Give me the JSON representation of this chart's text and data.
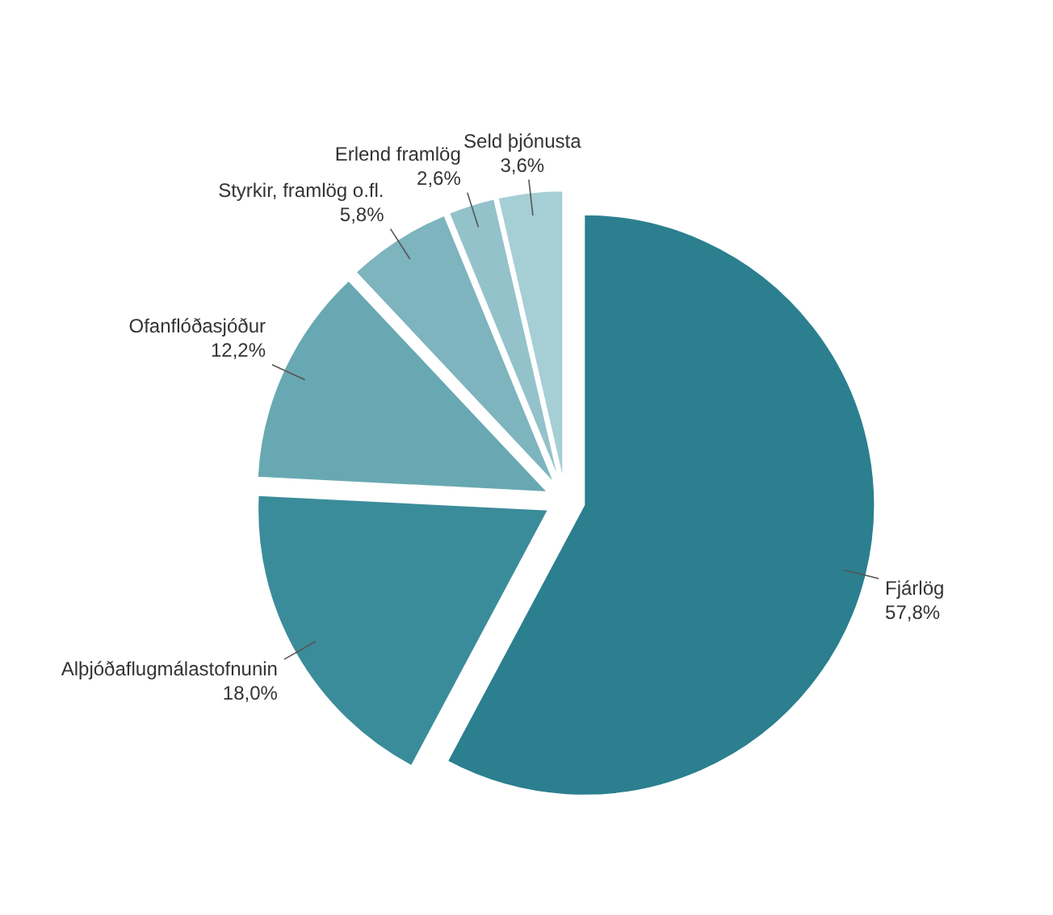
{
  "chart_data": {
    "type": "pie",
    "categories": [
      "Fjárlög",
      "Alþjóðaflugmálastofnunin",
      "Ofanflóðasjóður",
      "Styrkir, framlög o.fl.",
      "Erlend framlög",
      "Seld þjónusta"
    ],
    "values": [
      57.8,
      18.0,
      12.2,
      5.8,
      2.6,
      3.6
    ],
    "value_labels": [
      "57,8%",
      "18,0%",
      "12,2%",
      "5,8%",
      "2,6%",
      "3,6%"
    ],
    "colors": [
      "#2b7f8f",
      "#3b8c9a",
      "#68a8b3",
      "#7db4be",
      "#93c2ca",
      "#a6ced5"
    ]
  }
}
